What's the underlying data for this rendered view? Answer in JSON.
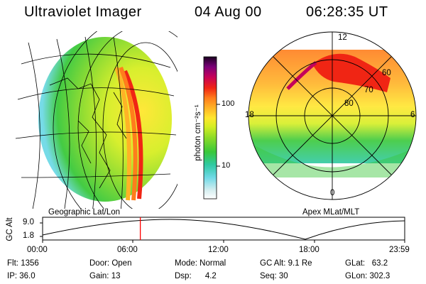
{
  "header": {
    "instrument": "Ultraviolet Imager",
    "date": "04 Aug 00",
    "time": "06:28:35 UT"
  },
  "colorbar": {
    "unit_label": "photon cm⁻²s⁻¹",
    "ticks": [
      "100",
      "10"
    ]
  },
  "left_panel": {
    "caption": "Geographic Lat/Lon"
  },
  "right_panel": {
    "caption": "Apex MLat/MLT",
    "mlt_labels": {
      "top": "12",
      "left": "18",
      "right": "6",
      "bottom": "0"
    },
    "lat_labels": [
      "60",
      "70",
      "80"
    ]
  },
  "altitude_plot": {
    "ylabel": "GC Alt",
    "y_ticks": [
      "9.0",
      "1.8"
    ],
    "x_ticks": [
      "00:00",
      "06:00",
      "12:00",
      "18:00",
      "23:59"
    ],
    "current_marker_time": "06:28:35",
    "marker_color": "#ff0000"
  },
  "status": {
    "flt_label": "Flt:",
    "flt_value": "1356",
    "ip_label": "IP:",
    "ip_value": "36.0",
    "door_label": "Door:",
    "door_value": "Open",
    "gain_label": "Gain:",
    "gain_value": "13",
    "mode_label": "Mode:",
    "mode_value": "Normal",
    "dsp_label": "Dsp:",
    "dsp_value": "4.2",
    "gcalt_label": "GC Alt:",
    "gcalt_value": "9.1 Re",
    "seq_label": "Seq:",
    "seq_value": "30",
    "glat_label": "GLat:",
    "glat_value": "63.2",
    "glon_label": "GLon:",
    "glon_value": "302.3"
  },
  "colors": {
    "background": "#ffffff",
    "ink": "#000000",
    "colormap": [
      "#ffffff",
      "#cdeef0",
      "#6fd9e6",
      "#2fc9a2",
      "#39c83a",
      "#8cdb28",
      "#d6ee23",
      "#ffe62e",
      "#ffb326",
      "#ff7d1c",
      "#f02514",
      "#c4005a",
      "#7a0078",
      "#2a0032"
    ]
  }
}
